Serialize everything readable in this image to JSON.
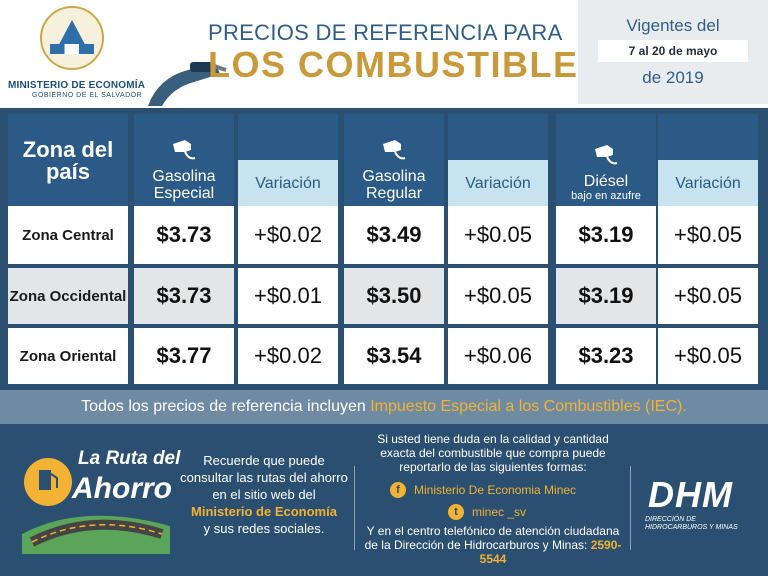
{
  "header": {
    "ministry": "MINISTERIO DE ECONOMÍA",
    "ministry_sub": "GOBIERNO DE EL SALVADOR",
    "title_line1": "PRECIOS DE REFERENCIA PARA",
    "title_line2": "LOS COMBUSTIBLES",
    "validity": {
      "top": "Vigentes del",
      "dates": "7 al 20 de mayo",
      "year": "de 2019"
    }
  },
  "table": {
    "zone_header": "Zona del país",
    "fuels": [
      {
        "name": "Gasolina Especial",
        "variation_label": "Variación"
      },
      {
        "name": "Gasolina Regular",
        "variation_label": "Variación"
      },
      {
        "name": "Diésel",
        "sub": "bajo en azufre",
        "variation_label": "Variación"
      }
    ],
    "rows": [
      {
        "zone": "Zona Central",
        "values": [
          "$3.73",
          "+$0.02",
          "$3.49",
          "+$0.05",
          "$3.19",
          "+$0.05"
        ]
      },
      {
        "zone": "Zona Occidental",
        "values": [
          "$3.73",
          "+$0.01",
          "$3.50",
          "+$0.05",
          "$3.19",
          "+$0.05"
        ]
      },
      {
        "zone": "Zona Oriental",
        "values": [
          "$3.77",
          "+$0.02",
          "$3.54",
          "+$0.06",
          "$3.23",
          "+$0.05"
        ]
      }
    ],
    "note_prefix": "Todos los precios de referencia incluyen",
    "note_highlight": "Impuesto Especial a los Combustibles (IEC)."
  },
  "footer": {
    "ruta_line1": "La Ruta del",
    "ruta_line2": "Ahorro",
    "recuerde": "Recuerde que puede consultar las rutas del ahorro en el sitio web del",
    "recuerde_highlight": "Ministerio de Economía",
    "recuerde_end": "y sus redes sociales.",
    "contact_intro": "Si usted tiene duda en la calidad y cantidad exacta del combustible que compra puede reportarlo de las siguientes formas:",
    "facebook": "Ministerio De Economia Minec",
    "twitter": "minec _sv",
    "phone_intro": "Y en el centro telefónico de atención ciudadana de la Dirección de Hidrocarburos y Minas:",
    "phone": "2590-5544",
    "dhm": "DHM",
    "dhm_sub": "DIRECCIÓN DE HIDROCARBUROS Y MINAS"
  },
  "colors": {
    "brand_blue": "#2b5a86",
    "gold": "#c89a3b",
    "highlight": "#f2b233"
  },
  "icons": [
    "seal-icon",
    "fuel-nozzle-icon",
    "fuel-pump-icon",
    "facebook-icon",
    "twitter-icon"
  ]
}
